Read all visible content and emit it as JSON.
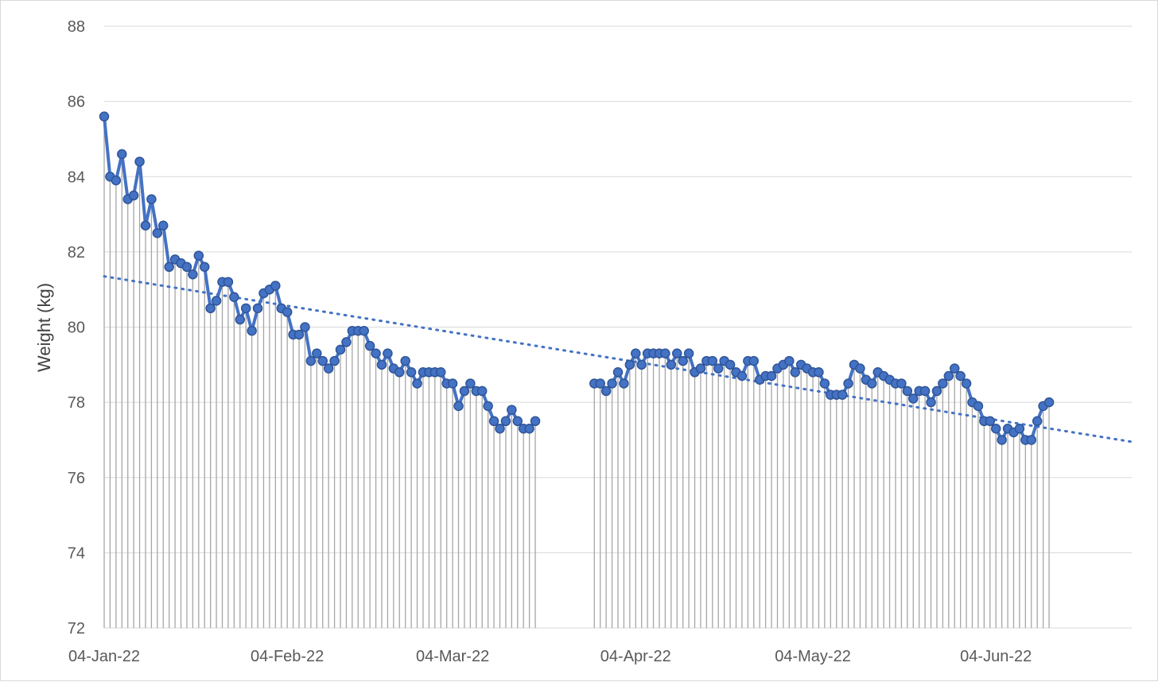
{
  "chart_data": {
    "type": "line",
    "title": "",
    "xlabel": "",
    "ylabel": "Weight (kg)",
    "x_axis": {
      "type": "date",
      "min": "2022-01-04",
      "max": "2022-06-27",
      "tick_labels": [
        {
          "date": "2022-01-04",
          "label": "04-Jan-22"
        },
        {
          "date": "2022-02-04",
          "label": "04-Feb-22"
        },
        {
          "date": "2022-03-04",
          "label": "04-Mar-22"
        },
        {
          "date": "2022-04-04",
          "label": "04-Apr-22"
        },
        {
          "date": "2022-05-04",
          "label": "04-May-22"
        },
        {
          "date": "2022-06-04",
          "label": "04-Jun-22"
        }
      ]
    },
    "ylim": [
      72,
      88
    ],
    "y_ticks": [
      72,
      74,
      76,
      78,
      80,
      82,
      84,
      86,
      88
    ],
    "grid": "horizontal",
    "legend": "none",
    "drop_lines": true,
    "series": [
      {
        "color": "#4472c4",
        "marker": "circle",
        "points": [
          [
            "2022-01-04",
            85.6
          ],
          [
            "2022-01-05",
            84.0
          ],
          [
            "2022-01-06",
            83.9
          ],
          [
            "2022-01-07",
            84.6
          ],
          [
            "2022-01-08",
            83.4
          ],
          [
            "2022-01-09",
            83.5
          ],
          [
            "2022-01-10",
            84.4
          ],
          [
            "2022-01-11",
            82.7
          ],
          [
            "2022-01-12",
            83.4
          ],
          [
            "2022-01-13",
            82.5
          ],
          [
            "2022-01-14",
            82.7
          ],
          [
            "2022-01-15",
            81.6
          ],
          [
            "2022-01-16",
            81.8
          ],
          [
            "2022-01-17",
            81.7
          ],
          [
            "2022-01-18",
            81.6
          ],
          [
            "2022-01-19",
            81.4
          ],
          [
            "2022-01-20",
            81.9
          ],
          [
            "2022-01-21",
            81.6
          ],
          [
            "2022-01-22",
            80.5
          ],
          [
            "2022-01-23",
            80.7
          ],
          [
            "2022-01-24",
            81.2
          ],
          [
            "2022-01-25",
            81.2
          ],
          [
            "2022-01-26",
            80.8
          ],
          [
            "2022-01-27",
            80.2
          ],
          [
            "2022-01-28",
            80.5
          ],
          [
            "2022-01-29",
            79.9
          ],
          [
            "2022-01-30",
            80.5
          ],
          [
            "2022-01-31",
            80.9
          ],
          [
            "2022-02-01",
            81.0
          ],
          [
            "2022-02-02",
            81.1
          ],
          [
            "2022-02-03",
            80.5
          ],
          [
            "2022-02-04",
            80.4
          ],
          [
            "2022-02-05",
            79.8
          ],
          [
            "2022-02-06",
            79.8
          ],
          [
            "2022-02-07",
            80.0
          ],
          [
            "2022-02-08",
            79.1
          ],
          [
            "2022-02-09",
            79.3
          ],
          [
            "2022-02-10",
            79.1
          ],
          [
            "2022-02-11",
            78.9
          ],
          [
            "2022-02-12",
            79.1
          ],
          [
            "2022-02-13",
            79.4
          ],
          [
            "2022-02-14",
            79.6
          ],
          [
            "2022-02-15",
            79.9
          ],
          [
            "2022-02-16",
            79.9
          ],
          [
            "2022-02-17",
            79.9
          ],
          [
            "2022-02-18",
            79.5
          ],
          [
            "2022-02-19",
            79.3
          ],
          [
            "2022-02-20",
            79.0
          ],
          [
            "2022-02-21",
            79.3
          ],
          [
            "2022-02-22",
            78.9
          ],
          [
            "2022-02-23",
            78.8
          ],
          [
            "2022-02-24",
            79.1
          ],
          [
            "2022-02-25",
            78.8
          ],
          [
            "2022-02-26",
            78.5
          ],
          [
            "2022-02-27",
            78.8
          ],
          [
            "2022-02-28",
            78.8
          ],
          [
            "2022-03-01",
            78.8
          ],
          [
            "2022-03-02",
            78.8
          ],
          [
            "2022-03-03",
            78.5
          ],
          [
            "2022-03-04",
            78.5
          ],
          [
            "2022-03-05",
            77.9
          ],
          [
            "2022-03-06",
            78.3
          ],
          [
            "2022-03-07",
            78.5
          ],
          [
            "2022-03-08",
            78.3
          ],
          [
            "2022-03-09",
            78.3
          ],
          [
            "2022-03-10",
            77.9
          ],
          [
            "2022-03-11",
            77.5
          ],
          [
            "2022-03-12",
            77.3
          ],
          [
            "2022-03-13",
            77.5
          ],
          [
            "2022-03-14",
            77.8
          ],
          [
            "2022-03-15",
            77.5
          ],
          [
            "2022-03-16",
            77.3
          ],
          [
            "2022-03-17",
            77.3
          ],
          [
            "2022-03-18",
            77.5
          ],
          null,
          [
            "2022-03-28",
            78.5
          ],
          [
            "2022-03-29",
            78.5
          ],
          [
            "2022-03-30",
            78.3
          ],
          [
            "2022-03-31",
            78.5
          ],
          [
            "2022-04-01",
            78.8
          ],
          [
            "2022-04-02",
            78.5
          ],
          [
            "2022-04-03",
            79.0
          ],
          [
            "2022-04-04",
            79.3
          ],
          [
            "2022-04-05",
            79.0
          ],
          [
            "2022-04-06",
            79.3
          ],
          [
            "2022-04-07",
            79.3
          ],
          [
            "2022-04-08",
            79.3
          ],
          [
            "2022-04-09",
            79.3
          ],
          [
            "2022-04-10",
            79.0
          ],
          [
            "2022-04-11",
            79.3
          ],
          [
            "2022-04-12",
            79.1
          ],
          [
            "2022-04-13",
            79.3
          ],
          [
            "2022-04-14",
            78.8
          ],
          [
            "2022-04-15",
            78.9
          ],
          [
            "2022-04-16",
            79.1
          ],
          [
            "2022-04-17",
            79.1
          ],
          [
            "2022-04-18",
            78.9
          ],
          [
            "2022-04-19",
            79.1
          ],
          [
            "2022-04-20",
            79.0
          ],
          [
            "2022-04-21",
            78.8
          ],
          [
            "2022-04-22",
            78.7
          ],
          [
            "2022-04-23",
            79.1
          ],
          [
            "2022-04-24",
            79.1
          ],
          [
            "2022-04-25",
            78.6
          ],
          [
            "2022-04-26",
            78.7
          ],
          [
            "2022-04-27",
            78.7
          ],
          [
            "2022-04-28",
            78.9
          ],
          [
            "2022-04-29",
            79.0
          ],
          [
            "2022-04-30",
            79.1
          ],
          [
            "2022-05-01",
            78.8
          ],
          [
            "2022-05-02",
            79.0
          ],
          [
            "2022-05-03",
            78.9
          ],
          [
            "2022-05-04",
            78.8
          ],
          [
            "2022-05-05",
            78.8
          ],
          [
            "2022-05-06",
            78.5
          ],
          [
            "2022-05-07",
            78.2
          ],
          [
            "2022-05-08",
            78.2
          ],
          [
            "2022-05-09",
            78.2
          ],
          [
            "2022-05-10",
            78.5
          ],
          [
            "2022-05-11",
            79.0
          ],
          [
            "2022-05-12",
            78.9
          ],
          [
            "2022-05-13",
            78.6
          ],
          [
            "2022-05-14",
            78.5
          ],
          [
            "2022-05-15",
            78.8
          ],
          [
            "2022-05-16",
            78.7
          ],
          [
            "2022-05-17",
            78.6
          ],
          [
            "2022-05-18",
            78.5
          ],
          [
            "2022-05-19",
            78.5
          ],
          [
            "2022-05-20",
            78.3
          ],
          [
            "2022-05-21",
            78.1
          ],
          [
            "2022-05-22",
            78.3
          ],
          [
            "2022-05-23",
            78.3
          ],
          [
            "2022-05-24",
            78.0
          ],
          [
            "2022-05-25",
            78.3
          ],
          [
            "2022-05-26",
            78.5
          ],
          [
            "2022-05-27",
            78.7
          ],
          [
            "2022-05-28",
            78.9
          ],
          [
            "2022-05-29",
            78.7
          ],
          [
            "2022-05-30",
            78.5
          ],
          [
            "2022-05-31",
            78.0
          ],
          [
            "2022-06-01",
            77.9
          ],
          [
            "2022-06-02",
            77.5
          ],
          [
            "2022-06-03",
            77.5
          ],
          [
            "2022-06-04",
            77.3
          ],
          [
            "2022-06-05",
            77.0
          ],
          [
            "2022-06-06",
            77.3
          ],
          [
            "2022-06-07",
            77.2
          ],
          [
            "2022-06-08",
            77.3
          ],
          [
            "2022-06-09",
            77.0
          ],
          [
            "2022-06-10",
            77.0
          ],
          [
            "2022-06-11",
            77.5
          ],
          [
            "2022-06-12",
            77.9
          ],
          [
            "2022-06-13",
            78.0
          ]
        ]
      }
    ],
    "trendline": {
      "type": "linear",
      "style": "dotted",
      "color": "#4472c4",
      "start": [
        "2022-01-04",
        81.35
      ],
      "end": [
        "2022-06-27",
        76.95
      ]
    }
  }
}
